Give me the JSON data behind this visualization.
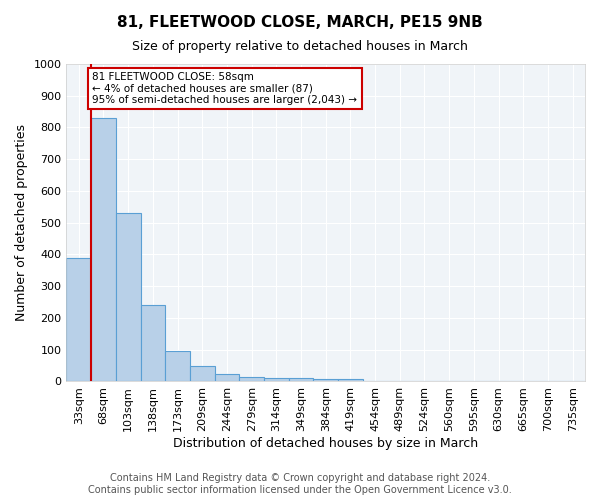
{
  "title": "81, FLEETWOOD CLOSE, MARCH, PE15 9NB",
  "subtitle": "Size of property relative to detached houses in March",
  "xlabel": "Distribution of detached houses by size in March",
  "ylabel": "Number of detached properties",
  "bin_labels": [
    "33sqm",
    "68sqm",
    "103sqm",
    "138sqm",
    "173sqm",
    "209sqm",
    "244sqm",
    "279sqm",
    "314sqm",
    "349sqm",
    "384sqm",
    "419sqm",
    "454sqm",
    "489sqm",
    "524sqm",
    "560sqm",
    "595sqm",
    "630sqm",
    "665sqm",
    "700sqm",
    "735sqm"
  ],
  "bin_values": [
    390,
    830,
    530,
    240,
    95,
    50,
    22,
    15,
    12,
    10,
    8,
    8,
    0,
    0,
    0,
    0,
    0,
    0,
    0,
    0,
    0
  ],
  "bar_color": "#b8d0e8",
  "bar_edge_color": "#5a9fd4",
  "ylim": [
    0,
    1000
  ],
  "property_line_color": "#cc0000",
  "annotation_line1": "81 FLEETWOOD CLOSE: 58sqm",
  "annotation_line2": "← 4% of detached houses are smaller (87)",
  "annotation_line3": "95% of semi-detached houses are larger (2,043) →",
  "annotation_box_color": "#cc0000",
  "footer_line1": "Contains HM Land Registry data © Crown copyright and database right 2024.",
  "footer_line2": "Contains public sector information licensed under the Open Government Licence v3.0.",
  "title_fontsize": 11,
  "subtitle_fontsize": 9,
  "axis_label_fontsize": 9,
  "tick_fontsize": 8,
  "footer_fontsize": 7,
  "bg_color": "#f0f4f8"
}
